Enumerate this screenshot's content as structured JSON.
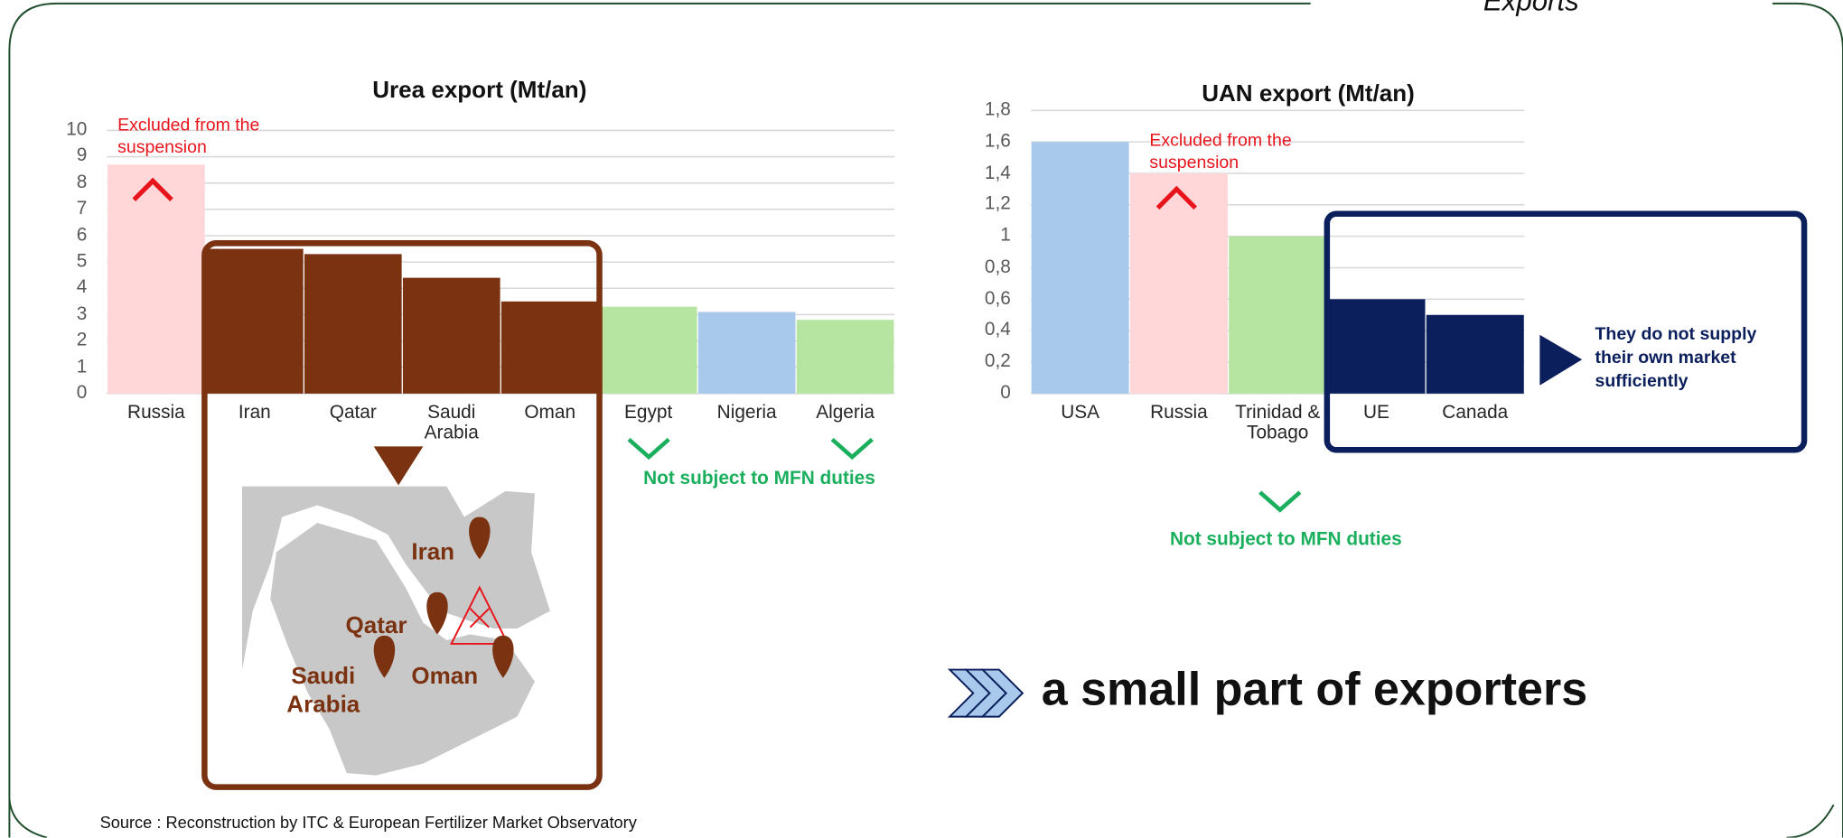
{
  "header": {
    "title": "Exports"
  },
  "chart_data": [
    {
      "type": "bar",
      "title": "Urea export (Mt/an)",
      "categories": [
        "Russia",
        "Iran",
        "Qatar",
        "Saudi Arabia",
        "Oman",
        "Egypt",
        "Nigeria",
        "Algeria"
      ],
      "values": [
        8.7,
        5.5,
        5.3,
        4.4,
        3.5,
        3.3,
        3.1,
        2.8
      ],
      "colors": [
        "#ffd7d9",
        "#7a3210",
        "#7a3210",
        "#7a3210",
        "#7a3210",
        "#b5e5a0",
        "#a9c9ec",
        "#b5e5a0"
      ],
      "ylim": [
        0,
        10
      ],
      "yticks": [
        0,
        1,
        2,
        3,
        4,
        5,
        6,
        7,
        8,
        9,
        10
      ],
      "grid": true,
      "annotations": [
        "Excluded from the suspension",
        "Not subject to MFN duties"
      ]
    },
    {
      "type": "bar",
      "title": "UAN export (Mt/an)",
      "categories": [
        "USA",
        "Russia",
        "Trinidad & Tobago",
        "UE",
        "Canada"
      ],
      "values": [
        1.6,
        1.4,
        1.0,
        0.6,
        0.5
      ],
      "colors": [
        "#a9c9ec",
        "#ffd7d9",
        "#b5e5a0",
        "#0b1f5c",
        "#0b1f5c"
      ],
      "ylim": [
        0,
        1.8
      ],
      "yticks": [
        0,
        {
          "value": 0.2,
          "label": "0,2"
        },
        {
          "value": 0.4,
          "label": "0,4"
        },
        {
          "value": 0.6,
          "label": "0,6"
        },
        {
          "value": 0.8,
          "label": "0,8"
        },
        1,
        {
          "value": 1.2,
          "label": "1,2"
        },
        {
          "value": 1.4,
          "label": "1,4"
        },
        {
          "value": 1.6,
          "label": "1,6"
        },
        {
          "value": 1.8,
          "label": "1,8"
        }
      ],
      "grid": true,
      "annotations": [
        "Excluded from the suspension",
        "Not subject to MFN duties",
        "They do not supply their own market sufficiently"
      ]
    }
  ],
  "map": {
    "labels": [
      "Iran",
      "Qatar",
      "Saudi Arabia",
      "Oman"
    ]
  },
  "conclusion": "a small part of exporters",
  "source": "Source : Reconstruction by ITC & European Fertilizer Market Observatory"
}
